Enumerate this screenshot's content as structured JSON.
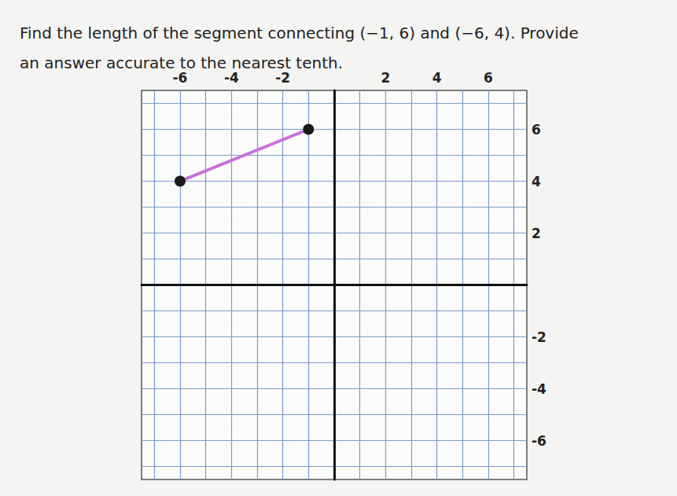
{
  "chart_data": {
    "type": "line",
    "title": "Find the length of the segment connecting (−1, 6) and (−6, 4). Provide\nan answer accurate to the nearest tenth.",
    "x": [
      -6,
      -1
    ],
    "values": [
      4,
      6
    ],
    "color": "#c86fdc",
    "marker": "circle",
    "xlim": [
      -7.5,
      7.5
    ],
    "xticks": [
      -6,
      -4,
      -2,
      2,
      4,
      6
    ],
    "ylim": [
      -7.5,
      7.5
    ],
    "yticks": [
      -6,
      -4,
      -2,
      2,
      4,
      6
    ],
    "grid": true
  }
}
